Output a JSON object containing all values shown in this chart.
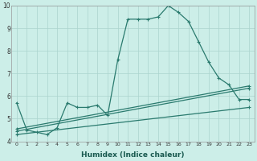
{
  "xlabel": "Humidex (Indice chaleur)",
  "bg_color": "#cceee8",
  "grid_color": "#aad4ce",
  "line_color": "#2a7a6e",
  "xlim": [
    -0.5,
    23.5
  ],
  "ylim": [
    4,
    10
  ],
  "yticks": [
    4,
    5,
    6,
    7,
    8,
    9,
    10
  ],
  "xticks": [
    0,
    1,
    2,
    3,
    4,
    5,
    6,
    7,
    8,
    9,
    10,
    11,
    12,
    13,
    14,
    15,
    16,
    17,
    18,
    19,
    20,
    21,
    22,
    23
  ],
  "series": [
    {
      "x": [
        0,
        1,
        2,
        3,
        4,
        5,
        6,
        7,
        8,
        9,
        10,
        11,
        12,
        13,
        14,
        15,
        16,
        17,
        18,
        19,
        20,
        21,
        22,
        23
      ],
      "y": [
        5.7,
        4.5,
        4.4,
        4.3,
        4.6,
        5.7,
        5.5,
        5.5,
        5.6,
        5.15,
        7.6,
        9.4,
        9.4,
        9.4,
        9.5,
        10.0,
        9.7,
        9.3,
        8.4,
        7.5,
        6.8,
        6.5,
        5.85,
        5.85
      ]
    },
    {
      "x": [
        0,
        23
      ],
      "y": [
        4.55,
        6.45
      ]
    },
    {
      "x": [
        0,
        23
      ],
      "y": [
        4.45,
        6.35
      ]
    },
    {
      "x": [
        0,
        23
      ],
      "y": [
        4.3,
        5.5
      ]
    }
  ]
}
